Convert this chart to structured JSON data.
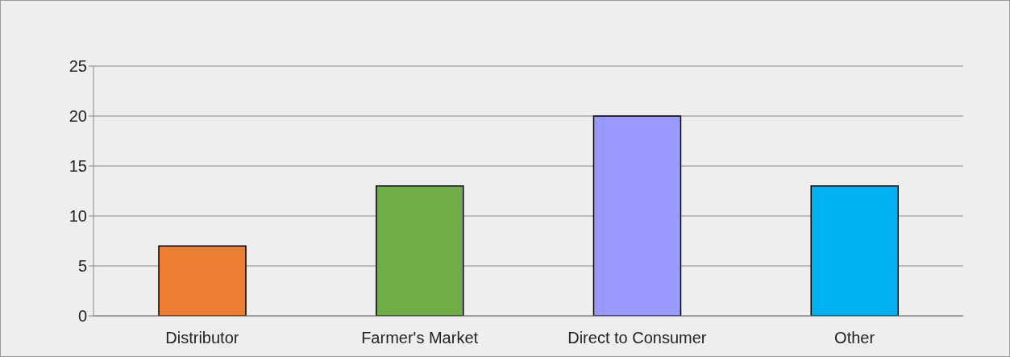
{
  "chart_data": {
    "type": "bar",
    "categories": [
      "Distributor",
      "Farmer's Market",
      "Direct to Consumer",
      "Other"
    ],
    "values": [
      7,
      13,
      20,
      13
    ],
    "colors": [
      "#ed7d31",
      "#70ad47",
      "#9999ff",
      "#00b0f0"
    ],
    "ylim": [
      0,
      25
    ],
    "yticks": [
      0,
      5,
      10,
      15,
      20,
      25
    ],
    "grid": "y"
  }
}
